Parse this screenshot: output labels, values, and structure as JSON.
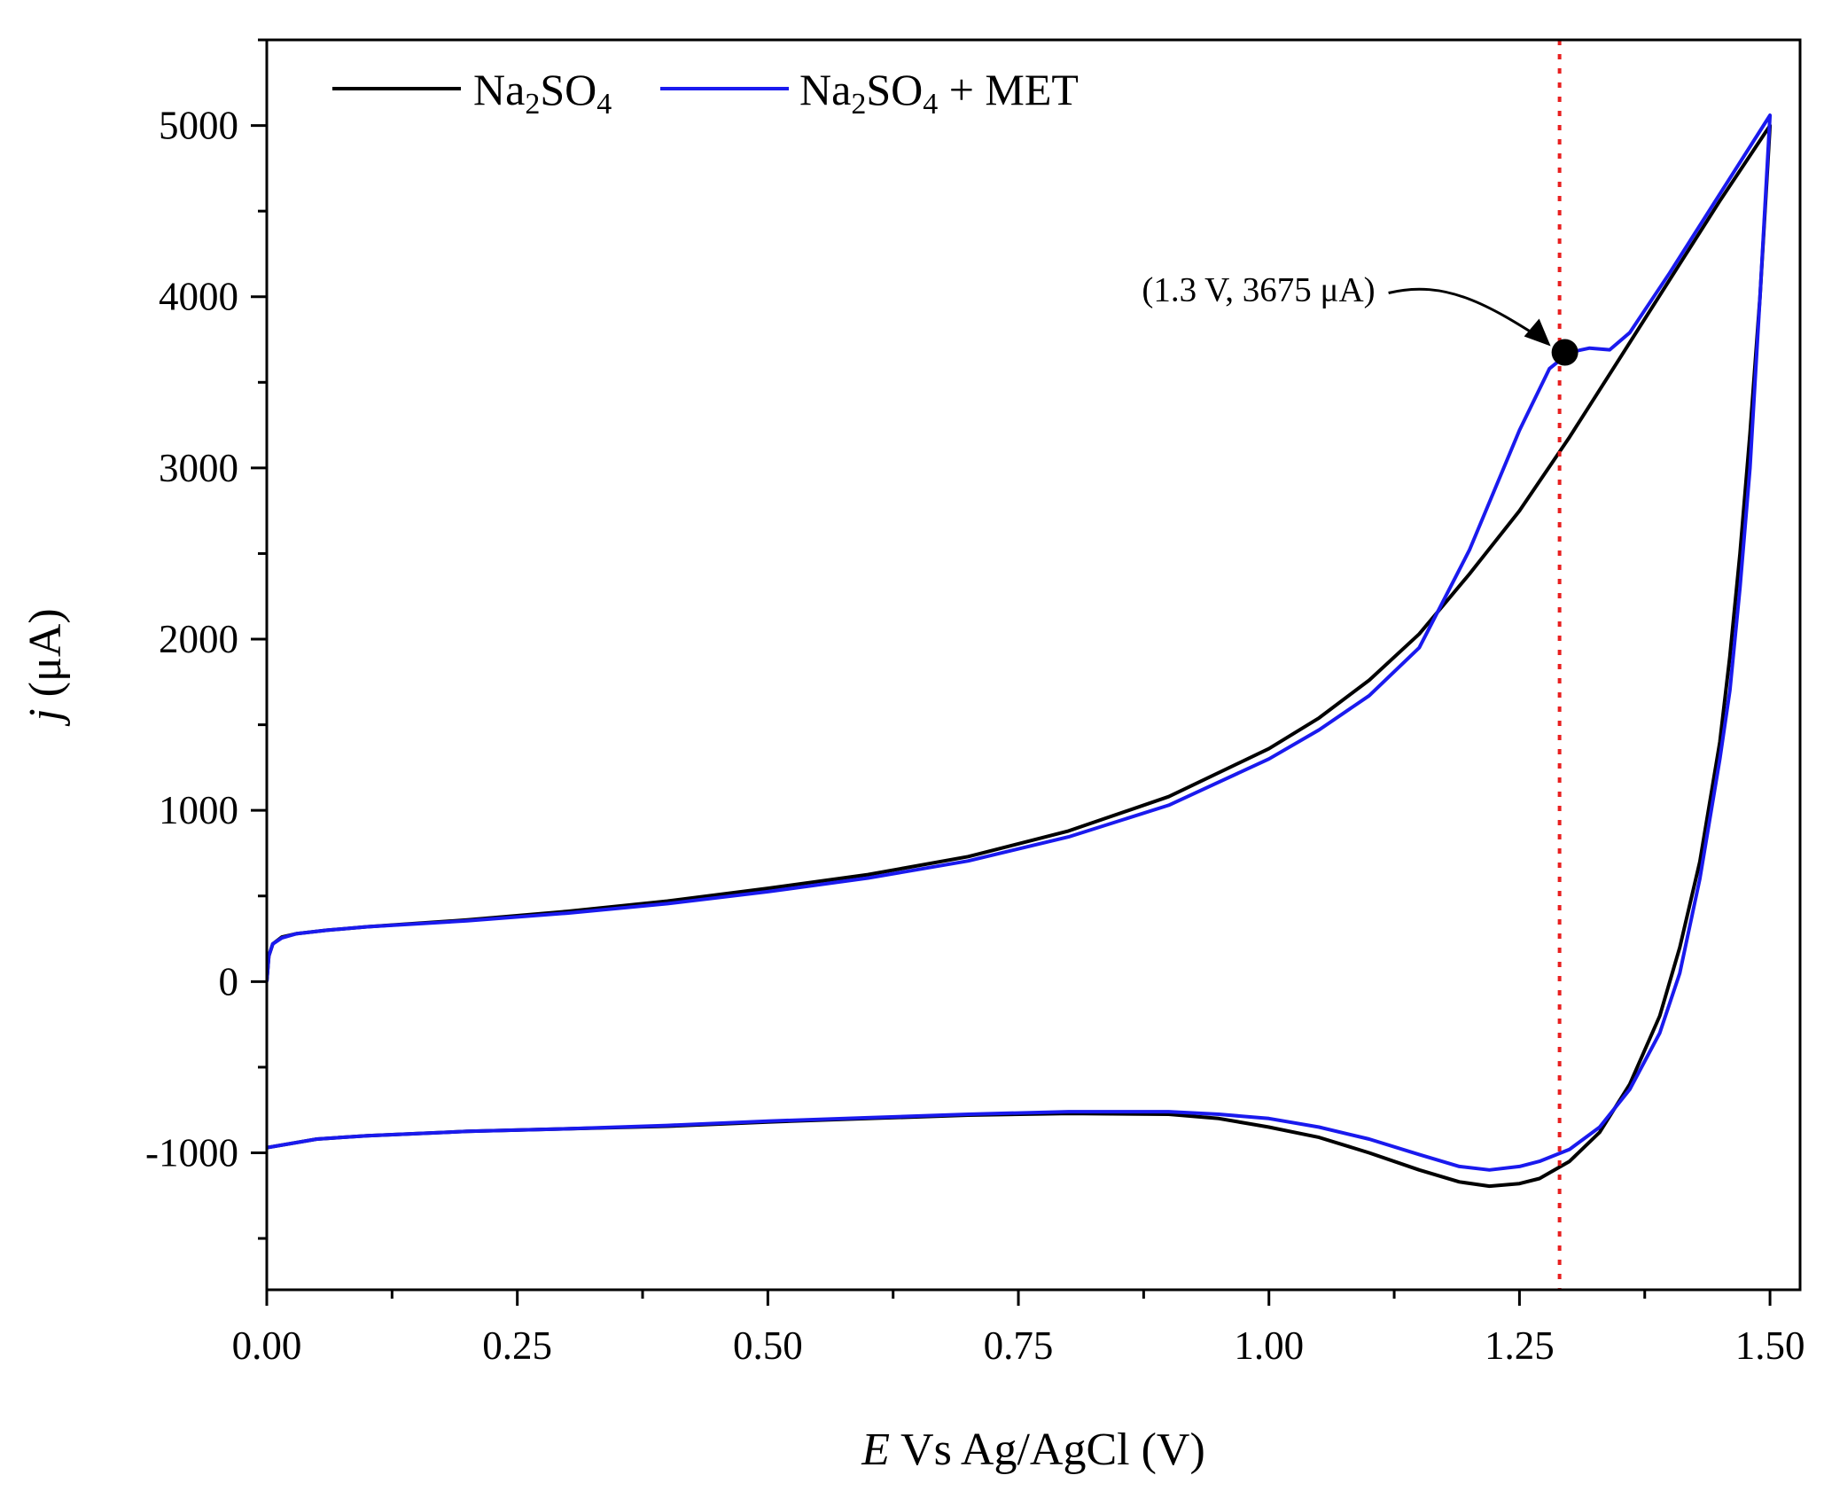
{
  "chart_data": {
    "type": "line",
    "title": "",
    "xlabel": {
      "italic": "E",
      "rest": " Vs Ag/AgCl (V)"
    },
    "ylabel": {
      "italic": "j",
      "rest": " (μA)"
    },
    "xlim": [
      0,
      1.53
    ],
    "ylim": [
      -1800,
      5500
    ],
    "x_ticks": [
      0,
      0.25,
      0.5,
      0.75,
      1.0,
      1.25,
      1.5
    ],
    "x_tick_labels": [
      "0.00",
      "0.25",
      "0.50",
      "0.75",
      "1.00",
      "1.25",
      "1.50"
    ],
    "x_minor_step": 0.125,
    "y_ticks": [
      -1000,
      0,
      1000,
      2000,
      3000,
      4000,
      5000
    ],
    "y_tick_labels": [
      "-1000",
      "0",
      "1000",
      "2000",
      "3000",
      "4000",
      "5000"
    ],
    "y_minor_step": 500,
    "grid": false,
    "legend_position": "top-left",
    "legend": [
      {
        "series": 0,
        "base": "Na",
        "sub1": "2",
        "mid": "SO",
        "sub2": "4",
        "suffix": ""
      },
      {
        "series": 1,
        "base": "Na",
        "sub1": "2",
        "mid": "SO",
        "sub2": "4",
        "suffix": " + MET"
      }
    ],
    "reference_line": {
      "x": 1.29,
      "color": "#e82020",
      "style": "dotted"
    },
    "annotation": {
      "text": "(1.3 V, 3675 μA)",
      "x": 1.29,
      "y": 3675
    },
    "series": [
      {
        "name": "Na2SO4",
        "color": "#000000",
        "forward": [
          [
            0,
            0
          ],
          [
            0.002,
            150
          ],
          [
            0.006,
            220
          ],
          [
            0.015,
            260
          ],
          [
            0.03,
            280
          ],
          [
            0.06,
            300
          ],
          [
            0.1,
            320
          ],
          [
            0.2,
            360
          ],
          [
            0.3,
            410
          ],
          [
            0.4,
            470
          ],
          [
            0.5,
            545
          ],
          [
            0.6,
            625
          ],
          [
            0.7,
            730
          ],
          [
            0.8,
            880
          ],
          [
            0.9,
            1080
          ],
          [
            1.0,
            1360
          ],
          [
            1.05,
            1540
          ],
          [
            1.1,
            1760
          ],
          [
            1.15,
            2030
          ],
          [
            1.2,
            2380
          ],
          [
            1.25,
            2750
          ],
          [
            1.3,
            3180
          ],
          [
            1.35,
            3640
          ],
          [
            1.4,
            4100
          ],
          [
            1.45,
            4560
          ],
          [
            1.5,
            5000
          ]
        ],
        "reverse": [
          [
            1.5,
            5000
          ],
          [
            1.49,
            4000
          ],
          [
            1.48,
            3200
          ],
          [
            1.47,
            2500
          ],
          [
            1.46,
            1900
          ],
          [
            1.45,
            1400
          ],
          [
            1.43,
            700
          ],
          [
            1.41,
            200
          ],
          [
            1.39,
            -200
          ],
          [
            1.36,
            -600
          ],
          [
            1.33,
            -880
          ],
          [
            1.3,
            -1050
          ],
          [
            1.27,
            -1150
          ],
          [
            1.25,
            -1180
          ],
          [
            1.22,
            -1195
          ],
          [
            1.19,
            -1170
          ],
          [
            1.15,
            -1100
          ],
          [
            1.1,
            -1000
          ],
          [
            1.05,
            -910
          ],
          [
            1.0,
            -850
          ],
          [
            0.95,
            -800
          ],
          [
            0.9,
            -775
          ],
          [
            0.8,
            -770
          ],
          [
            0.7,
            -780
          ],
          [
            0.6,
            -800
          ],
          [
            0.5,
            -820
          ],
          [
            0.4,
            -845
          ],
          [
            0.3,
            -860
          ],
          [
            0.2,
            -875
          ],
          [
            0.1,
            -900
          ],
          [
            0.05,
            -920
          ],
          [
            0,
            -970
          ]
        ]
      },
      {
        "name": "Na2SO4 + MET",
        "color": "#1a1aee",
        "forward": [
          [
            0,
            0
          ],
          [
            0.002,
            150
          ],
          [
            0.006,
            220
          ],
          [
            0.015,
            255
          ],
          [
            0.03,
            280
          ],
          [
            0.06,
            300
          ],
          [
            0.1,
            320
          ],
          [
            0.2,
            355
          ],
          [
            0.3,
            400
          ],
          [
            0.4,
            455
          ],
          [
            0.5,
            525
          ],
          [
            0.6,
            605
          ],
          [
            0.7,
            705
          ],
          [
            0.8,
            845
          ],
          [
            0.9,
            1030
          ],
          [
            1.0,
            1300
          ],
          [
            1.05,
            1470
          ],
          [
            1.1,
            1670
          ],
          [
            1.15,
            1950
          ],
          [
            1.2,
            2520
          ],
          [
            1.25,
            3220
          ],
          [
            1.28,
            3580
          ],
          [
            1.3,
            3675
          ],
          [
            1.32,
            3700
          ],
          [
            1.34,
            3690
          ],
          [
            1.36,
            3790
          ],
          [
            1.4,
            4140
          ],
          [
            1.45,
            4600
          ],
          [
            1.5,
            5060
          ]
        ],
        "reverse": [
          [
            1.5,
            5060
          ],
          [
            1.49,
            4000
          ],
          [
            1.48,
            3000
          ],
          [
            1.47,
            2300
          ],
          [
            1.46,
            1700
          ],
          [
            1.45,
            1300
          ],
          [
            1.43,
            600
          ],
          [
            1.41,
            50
          ],
          [
            1.39,
            -300
          ],
          [
            1.36,
            -630
          ],
          [
            1.33,
            -850
          ],
          [
            1.3,
            -980
          ],
          [
            1.27,
            -1050
          ],
          [
            1.25,
            -1080
          ],
          [
            1.22,
            -1100
          ],
          [
            1.19,
            -1080
          ],
          [
            1.15,
            -1010
          ],
          [
            1.1,
            -920
          ],
          [
            1.05,
            -850
          ],
          [
            1.0,
            -800
          ],
          [
            0.95,
            -775
          ],
          [
            0.9,
            -760
          ],
          [
            0.8,
            -760
          ],
          [
            0.7,
            -775
          ],
          [
            0.6,
            -795
          ],
          [
            0.5,
            -815
          ],
          [
            0.4,
            -840
          ],
          [
            0.3,
            -860
          ],
          [
            0.2,
            -875
          ],
          [
            0.1,
            -900
          ],
          [
            0.05,
            -920
          ],
          [
            0,
            -970
          ]
        ]
      }
    ]
  }
}
